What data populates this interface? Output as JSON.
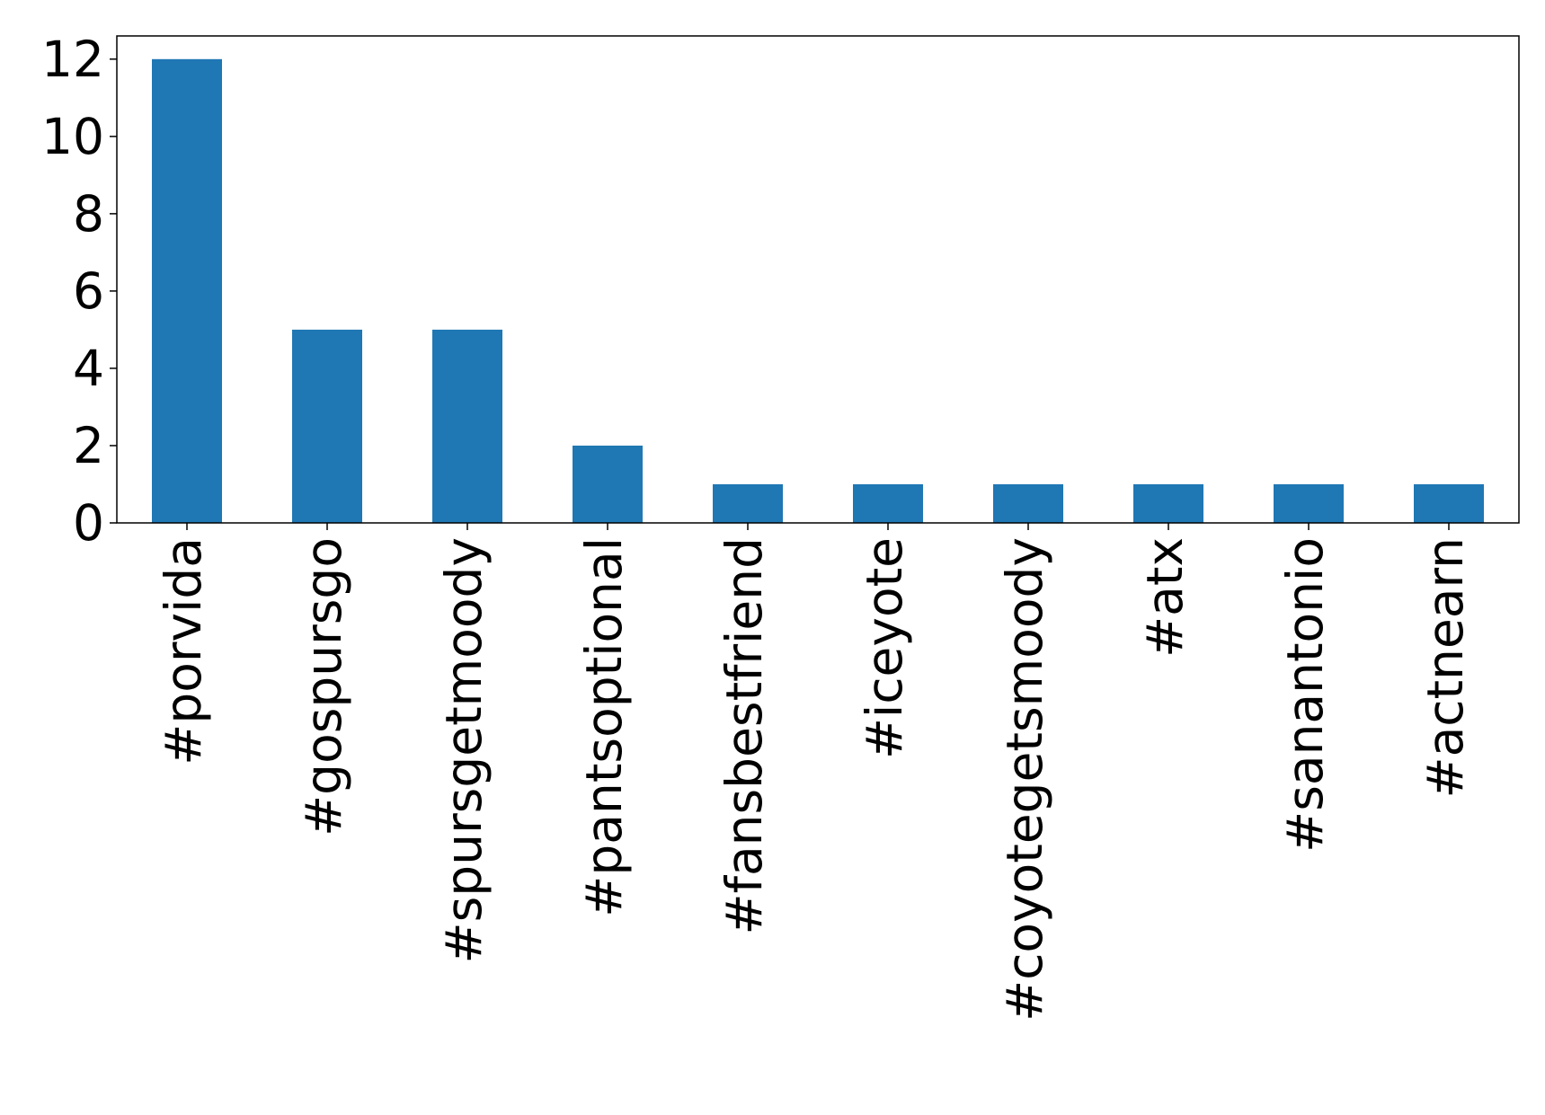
{
  "chart_data": {
    "type": "bar",
    "categories": [
      "#porvida",
      "#gospursgo",
      "#spursgetmoody",
      "#pantsoptional",
      "#fansbestfriend",
      "#iceyote",
      "#coyotegetsmoody",
      "#atx",
      "#sanantonio",
      "#actnearn"
    ],
    "values": [
      12,
      5,
      5,
      2,
      1,
      1,
      1,
      1,
      1,
      1
    ],
    "title": "",
    "xlabel": "",
    "ylabel": "",
    "ylim": [
      0,
      12.6
    ],
    "yticks": [
      0,
      2,
      4,
      6,
      8,
      10,
      12
    ],
    "grid": false,
    "legend": "none",
    "bar_color": "#1f77b4",
    "x_tick_rotation": "vertical"
  }
}
